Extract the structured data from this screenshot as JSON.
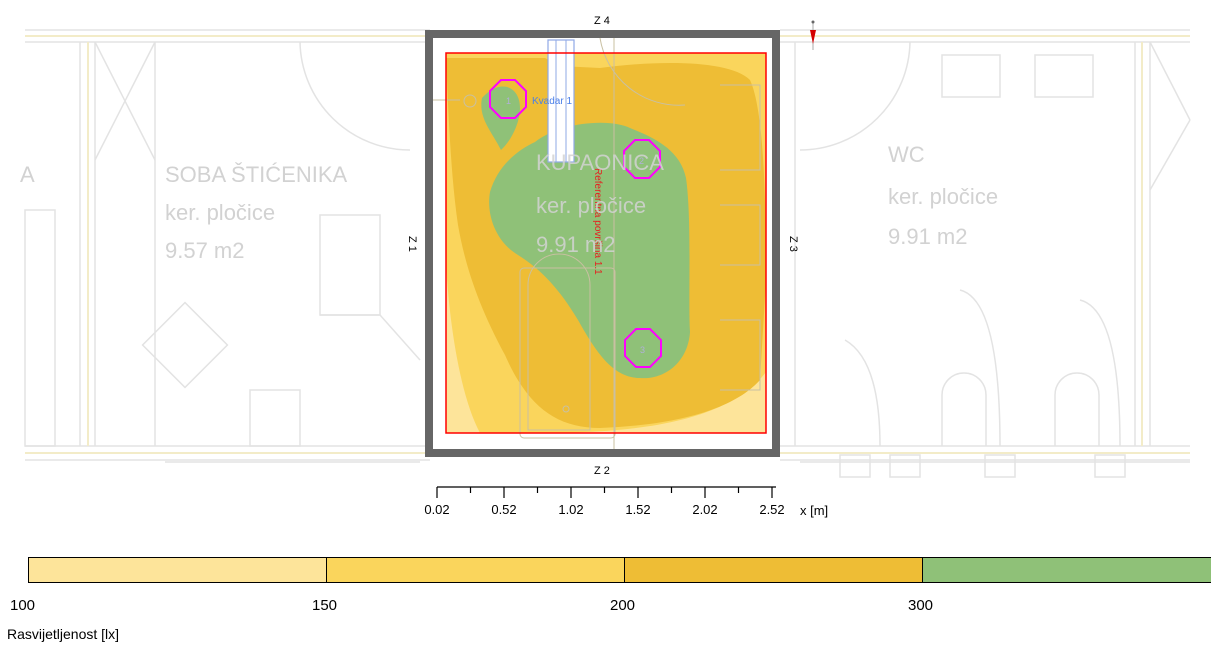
{
  "rooms": [
    {
      "name": "SOBA ŠTIĆENIKA",
      "floor": "ker. pločice",
      "area": "9.57 m2"
    },
    {
      "name": "KUPAONICA",
      "floor": "ker. pločice",
      "area": "9.91 m2"
    },
    {
      "name": "WC",
      "floor": "ker. pločice",
      "area": "9.91 m2"
    }
  ],
  "left_cut_label": "A",
  "walls": {
    "top": "Z 4",
    "bottom": "Z 2",
    "left": "Z 1",
    "right": "Z 3"
  },
  "surface_label": "Referentna površina 1.1",
  "window_label": "Kvadar 1",
  "luminaire_labels": [
    "1",
    "2",
    "3"
  ],
  "x_axis": {
    "ticks": [
      "0.02",
      "0.52",
      "1.02",
      "1.52",
      "2.02",
      "2.52"
    ],
    "label": "x [m]"
  },
  "legend": {
    "title": "Rasvijetljenost [lx]",
    "values": [
      "100",
      "150",
      "200",
      "300"
    ],
    "colors": [
      "#fde49a",
      "#fad55c",
      "#eebd35",
      "#8fc178"
    ]
  },
  "colors": {
    "wall": "#666666",
    "reference_outline": "#ff0000",
    "luminaire": "#ff00ff",
    "plan_lines": "#e6e6e6"
  }
}
